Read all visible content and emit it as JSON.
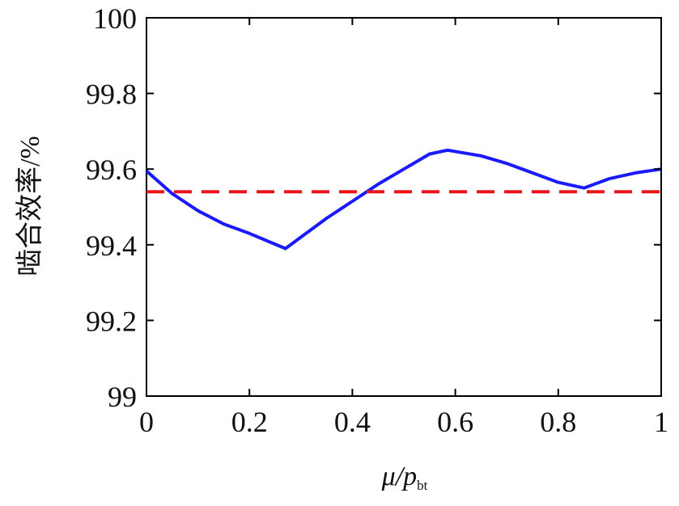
{
  "chart_data": {
    "type": "line",
    "xlabel": {
      "main": "μ/p",
      "subscript": "bt"
    },
    "ylabel": "啮合效率/%",
    "xlim": [
      0,
      1
    ],
    "ylim": [
      99,
      100
    ],
    "x_ticks": [
      "0",
      "0.2",
      "0.4",
      "0.6",
      "0.8",
      "1"
    ],
    "y_ticks": [
      "99",
      "99.2",
      "99.4",
      "99.6",
      "99.8",
      "100"
    ],
    "grid": false,
    "legend": "none",
    "series": [
      {
        "style": "solid",
        "color": "#1a1aff",
        "x": [
          0,
          0.05,
          0.1,
          0.15,
          0.2,
          0.27,
          0.3,
          0.35,
          0.4,
          0.45,
          0.5,
          0.55,
          0.585,
          0.65,
          0.7,
          0.75,
          0.8,
          0.85,
          0.9,
          0.95,
          1.0
        ],
        "y": [
          99.595,
          99.535,
          99.49,
          99.455,
          99.43,
          99.39,
          99.42,
          99.47,
          99.515,
          99.56,
          99.6,
          99.64,
          99.65,
          99.635,
          99.615,
          99.59,
          99.565,
          99.55,
          99.575,
          99.59,
          99.6
        ]
      },
      {
        "style": "dashed",
        "color": "#e8151b",
        "x": [
          0,
          1
        ],
        "y": [
          99.54,
          99.54
        ]
      }
    ]
  }
}
